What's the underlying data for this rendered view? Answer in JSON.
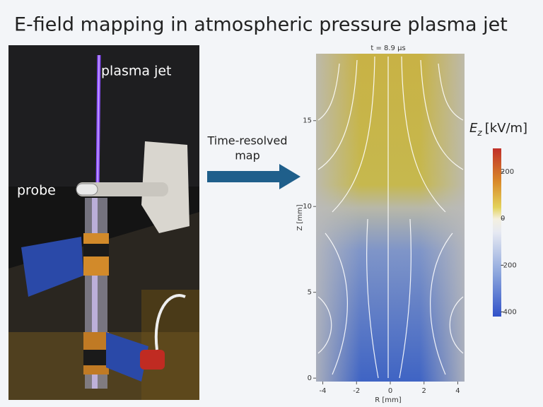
{
  "title": "E-field mapping in atmospheric pressure plasma jet",
  "photo": {
    "labels": [
      "plasma jet",
      "probe"
    ]
  },
  "arrow_label": [
    "Time-resolved",
    "map"
  ],
  "field_map": {
    "title": "t = 8.9 μs",
    "xlabel": "R [mm]",
    "ylabel": "Z [mm]",
    "xlim": [
      -4.4,
      4.4
    ],
    "ylim": [
      -0.2,
      18.9
    ],
    "xticks": [
      -4,
      -2,
      0,
      2,
      4
    ],
    "yticks": [
      0,
      5,
      10,
      15
    ],
    "colorbar": {
      "label_symbol": "E",
      "label_subscript": "z",
      "label_unit": "[kV/m]",
      "lim": [
        -420,
        300
      ],
      "ticks": [
        200,
        0,
        -200,
        -400
      ]
    }
  }
}
